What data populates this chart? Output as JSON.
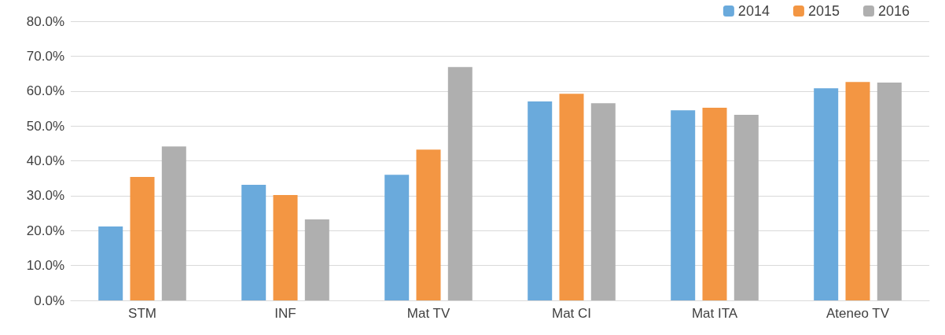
{
  "chart_data": {
    "type": "bar",
    "categories": [
      "STM",
      "INF",
      "Mat TV",
      "Mat CI",
      "Mat ITA",
      "Ateneo TV"
    ],
    "series": [
      {
        "name": "2014",
        "color": "#6aaadc",
        "values": [
          21.2,
          33.1,
          36.0,
          57.0,
          54.5,
          60.8
        ]
      },
      {
        "name": "2015",
        "color": "#f39643",
        "values": [
          35.4,
          30.2,
          43.2,
          59.2,
          55.2,
          62.6
        ]
      },
      {
        "name": "2016",
        "color": "#afafaf",
        "values": [
          44.1,
          23.2,
          66.9,
          56.5,
          53.2,
          62.4
        ]
      }
    ],
    "ylim": [
      0,
      80
    ],
    "yticks": [
      {
        "value": 0,
        "label": "0.0%"
      },
      {
        "value": 10,
        "label": "10.0%"
      },
      {
        "value": 20,
        "label": "20.0%"
      },
      {
        "value": 30,
        "label": "30.0%"
      },
      {
        "value": 40,
        "label": "40.0%"
      },
      {
        "value": 50,
        "label": "50.0%"
      },
      {
        "value": 60,
        "label": "60.0%"
      },
      {
        "value": 70,
        "label": "70.0%"
      },
      {
        "value": 80,
        "label": "80.0%"
      }
    ],
    "grid": "y",
    "legend": "top right"
  }
}
